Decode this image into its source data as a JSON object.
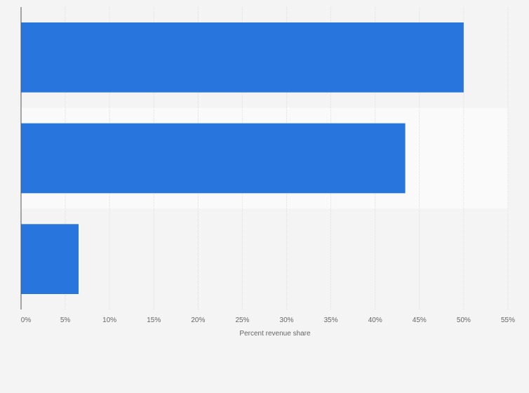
{
  "chart_data": {
    "type": "bar",
    "orientation": "horizontal",
    "categories": [
      "",
      "",
      ""
    ],
    "values": [
      50.0,
      43.4,
      6.5
    ],
    "xlabel": "Percent revenue share",
    "ylabel": "",
    "xlim": [
      0,
      55
    ],
    "ticks": [
      0,
      5,
      10,
      15,
      20,
      25,
      30,
      35,
      40,
      45,
      50,
      55
    ],
    "tick_labels": [
      "0%",
      "5%",
      "10%",
      "15%",
      "20%",
      "25%",
      "30%",
      "35%",
      "40%",
      "45%",
      "50%",
      "55%"
    ],
    "grid": true,
    "legend": "none",
    "colors": {
      "bar": "#2876dd",
      "background": "#f4f4f4",
      "band": "#fafafa",
      "grid": "#dedede",
      "axis": "#555555"
    }
  }
}
